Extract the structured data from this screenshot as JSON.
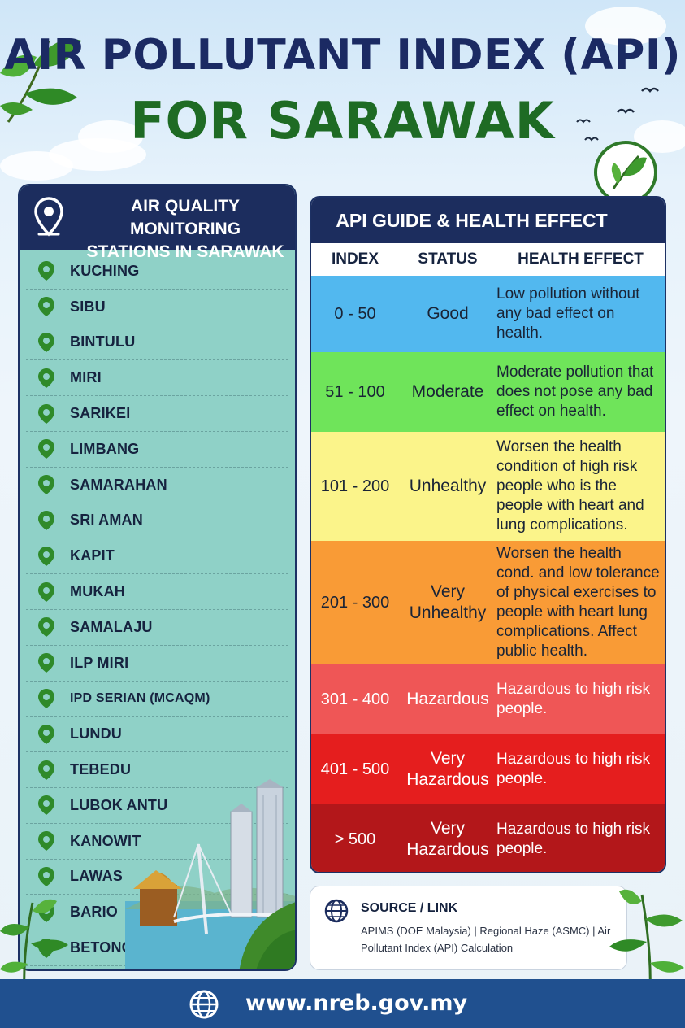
{
  "title": {
    "line1": "AIR POLLUTANT INDEX (API)",
    "line2": "FOR SARAWAK"
  },
  "stations": {
    "header": "AIR QUALITY MONITORING STATIONS IN SARAWAK",
    "header_line1": "AIR QUALITY MONITORING",
    "header_line2": "STATIONS IN SARAWAK",
    "items": [
      "KUCHING",
      "SIBU",
      "BINTULU",
      "MIRI",
      "SARIKEI",
      "LIMBANG",
      "SAMARAHAN",
      "SRI AMAN",
      "KAPIT",
      "MUKAH",
      "SAMALAJU",
      "ILP MIRI",
      "IPD SERIAN (MCAQM)",
      "LUNDU",
      "TEBEDU",
      "LUBOK ANTU",
      "KANOWIT",
      "LAWAS",
      "BARIO",
      "BETONG (MCAQM)"
    ]
  },
  "guide": {
    "header": "API GUIDE & HEALTH EFFECT",
    "columns": {
      "index": "INDEX",
      "status": "STATUS",
      "effect": "HEALTH EFFECT"
    },
    "rows": [
      {
        "index": "0 - 50",
        "status": "Good",
        "effect": "Low pollution without any bad effect on health.",
        "color": "#52b8ef",
        "text_color": "#1a2436",
        "height": 94
      },
      {
        "index": "51 - 100",
        "status": "Moderate",
        "effect": "Moderate pollution that does not pose any bad effect on health.",
        "color": "#6fe45a",
        "text_color": "#1a2436",
        "height": 98
      },
      {
        "index": "101 - 200",
        "status": "Unhealthy",
        "effect": "Worsen the health condition of high risk people who is the people with heart and lung complications.",
        "color": "#fbf48a",
        "text_color": "#1a2436",
        "height": 134
      },
      {
        "index": "201 - 300",
        "status": "Very Unhealthy",
        "effect": "Worsen the health cond. and low tolerance of physical exercises to people with heart lung complications. Affect public health.",
        "color": "#f99b36",
        "text_color": "#1a2436",
        "height": 152
      },
      {
        "index": "301 - 400",
        "status": "Hazardous",
        "effect": "Hazardous to high risk people.",
        "color": "#ef5656",
        "text_color": "#ffffff",
        "height": 86
      },
      {
        "index": "401 - 500",
        "status": "Very Hazardous",
        "effect": "Hazardous to high risk people.",
        "color": "#e51e1e",
        "text_color": "#ffffff",
        "height": 86
      },
      {
        "index": "> 500",
        "status": "Very Hazardous",
        "effect": "Hazardous to high risk people.",
        "color": "#b3171a",
        "text_color": "#ffffff",
        "height": 86
      }
    ]
  },
  "source": {
    "title": "SOURCE / LINK",
    "links": "APIMS (DOE Malaysia) | Regional Haze (ASMC) | Air Pollutant Index (API) Calculation"
  },
  "footer": {
    "url": "www.nreb.gov.my"
  }
}
